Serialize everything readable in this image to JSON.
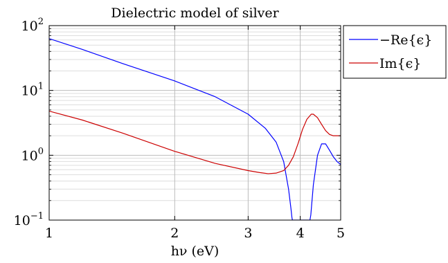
{
  "chart_data": {
    "type": "line",
    "title": "Dielectric model of silver",
    "xlabel": "hν (eV)",
    "ylabel": "",
    "x_scale": "log",
    "y_scale": "log",
    "xlim": [
      1,
      5
    ],
    "ylim": [
      0.1,
      100
    ],
    "x_ticks": [
      {
        "value": 1,
        "label": "1"
      },
      {
        "value": 2,
        "label": "2"
      },
      {
        "value": 3,
        "label": "3"
      },
      {
        "value": 4,
        "label": "4"
      },
      {
        "value": 5,
        "label": "5"
      }
    ],
    "y_ticks": [
      {
        "value": 0.1,
        "base": "10",
        "exp": "−1"
      },
      {
        "value": 1,
        "base": "10",
        "exp": "0"
      },
      {
        "value": 10,
        "base": "10",
        "exp": "1"
      },
      {
        "value": 100,
        "base": "10",
        "exp": "2"
      }
    ],
    "grid": true,
    "legend_position": "outside-right-top",
    "series": [
      {
        "name": "−Re{ϵ}",
        "color": "#0000ff",
        "x": [
          1.0,
          1.2,
          1.5,
          2.0,
          2.5,
          3.0,
          3.3,
          3.5,
          3.65,
          3.75,
          3.8,
          3.82,
          3.83,
          4.22,
          4.24,
          4.3,
          4.4,
          4.5,
          4.6,
          4.7,
          4.8,
          4.9,
          5.0
        ],
        "y": [
          63.0,
          43.0,
          26.0,
          14.0,
          8.0,
          4.3,
          2.6,
          1.6,
          0.8,
          0.3,
          0.15,
          0.11,
          0.1,
          0.1,
          0.12,
          0.35,
          1.0,
          1.5,
          1.5,
          1.2,
          0.95,
          0.8,
          0.72
        ]
      },
      {
        "name": "Im{ϵ}",
        "color": "#cc0000",
        "x": [
          1.0,
          1.2,
          1.5,
          2.0,
          2.5,
          3.0,
          3.2,
          3.35,
          3.5,
          3.65,
          3.75,
          3.85,
          3.95,
          4.05,
          4.15,
          4.25,
          4.3,
          4.4,
          4.5,
          4.6,
          4.7,
          4.8,
          5.0
        ],
        "y": [
          4.8,
          3.5,
          2.2,
          1.15,
          0.75,
          0.58,
          0.54,
          0.52,
          0.53,
          0.58,
          0.7,
          0.95,
          1.5,
          2.5,
          3.6,
          4.3,
          4.3,
          3.8,
          3.0,
          2.4,
          2.1,
          2.0,
          2.0
        ]
      }
    ]
  }
}
